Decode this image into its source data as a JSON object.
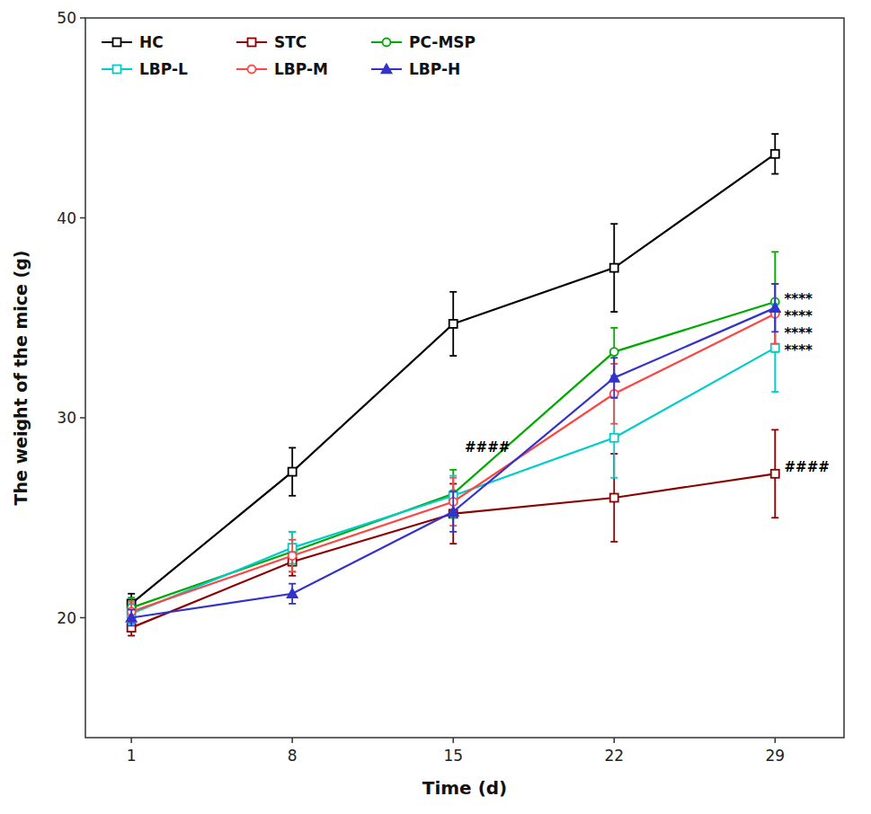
{
  "chart_data": {
    "type": "line",
    "xlabel": "Time (d)",
    "ylabel": "The weight of the mice (g)",
    "x": [
      1,
      8,
      15,
      22,
      29
    ],
    "xlim": [
      -1,
      32
    ],
    "xticks": [
      1,
      8,
      15,
      22,
      29
    ],
    "ylim": [
      14,
      50
    ],
    "yticks": [
      20,
      30,
      40,
      50
    ],
    "grid": false,
    "legend": "upper left",
    "series": [
      {
        "name": "HC",
        "color": "#000000",
        "marker": "square-open",
        "values": [
          20.7,
          27.3,
          34.7,
          37.5,
          43.2
        ],
        "errors": [
          0.5,
          1.2,
          1.6,
          2.2,
          1.0
        ]
      },
      {
        "name": "STC",
        "color": "#8B0000",
        "marker": "square-open",
        "values": [
          19.5,
          22.8,
          25.2,
          26.0,
          27.2
        ],
        "errors": [
          0.4,
          0.7,
          1.5,
          2.2,
          2.2
        ]
      },
      {
        "name": "PC-MSP",
        "color": "#00AA00",
        "marker": "circle-open",
        "values": [
          20.5,
          23.3,
          26.2,
          33.3,
          35.8
        ],
        "errors": [
          0.5,
          1.0,
          1.2,
          1.2,
          2.5
        ]
      },
      {
        "name": "LBP-L",
        "color": "#00CCCC",
        "marker": "square-open",
        "values": [
          20.2,
          23.5,
          26.1,
          29.0,
          33.5
        ],
        "errors": [
          0.5,
          0.8,
          1.0,
          2.0,
          2.2
        ]
      },
      {
        "name": "LBP-M",
        "color": "#FF4444",
        "marker": "circle-open",
        "values": [
          20.3,
          23.1,
          25.8,
          31.2,
          35.2
        ],
        "errors": [
          0.5,
          0.8,
          1.2,
          1.5,
          1.5
        ]
      },
      {
        "name": "LBP-H",
        "color": "#3333CC",
        "marker": "triangle-filled",
        "values": [
          20.0,
          21.2,
          25.3,
          32.0,
          35.5
        ],
        "errors": [
          0.4,
          0.5,
          1.0,
          1.0,
          1.2
        ]
      }
    ],
    "annotations": [
      {
        "text": "####",
        "x": 15.5,
        "y": 28.3
      },
      {
        "text": "####",
        "x": 29.4,
        "y": 27.3
      },
      {
        "text": "****",
        "x": 29.4,
        "y": 35.7
      },
      {
        "text": "****",
        "x": 29.4,
        "y": 34.85
      },
      {
        "text": "****",
        "x": 29.4,
        "y": 34.0
      },
      {
        "text": "****",
        "x": 29.4,
        "y": 33.15
      }
    ]
  }
}
